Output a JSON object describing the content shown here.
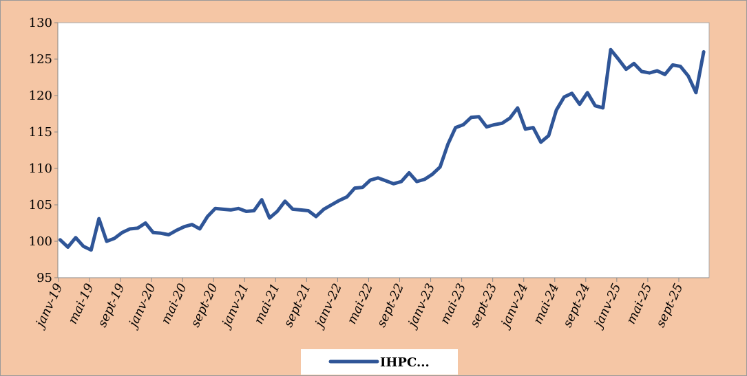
{
  "chart_data": {
    "type": "line",
    "categories": [
      "janv-19",
      null,
      null,
      null,
      "mai-19",
      null,
      null,
      null,
      "sept-19",
      null,
      null,
      null,
      "janv-20",
      null,
      null,
      null,
      "mai-20",
      null,
      null,
      null,
      "sept-20",
      null,
      null,
      null,
      "janv-21",
      null,
      null,
      null,
      "mai-21",
      null,
      null,
      null,
      "sept-21",
      null,
      null,
      null,
      "janv-22",
      null,
      null,
      null,
      "mai-22",
      null,
      null,
      null,
      "sept-22",
      null,
      null,
      null,
      "janv-23",
      null,
      null,
      null,
      "mai-23",
      null,
      null,
      null,
      "sept-23",
      null,
      null,
      null,
      "janv-24",
      null,
      null,
      null,
      "mai-24",
      null,
      null,
      null,
      "sept-24",
      null,
      null,
      null,
      "janv-25",
      null,
      null,
      null,
      "mai-25",
      null,
      null,
      null,
      "sept-25",
      null,
      null,
      null
    ],
    "series": [
      {
        "name": "IHPC...",
        "color": "#2f5597",
        "values": [
          100.2,
          99.2,
          100.5,
          99.3,
          98.8,
          103.1,
          100.0,
          100.4,
          101.2,
          101.7,
          101.8,
          102.5,
          101.2,
          101.1,
          100.9,
          101.5,
          102.0,
          102.3,
          101.7,
          103.4,
          104.5,
          104.4,
          104.3,
          104.5,
          104.1,
          104.2,
          105.7,
          103.2,
          104.1,
          105.5,
          104.4,
          104.3,
          104.2,
          103.4,
          104.4,
          105.0,
          105.6,
          106.1,
          107.3,
          107.4,
          108.4,
          108.7,
          108.3,
          107.9,
          108.2,
          109.4,
          108.2,
          108.5,
          109.2,
          110.2,
          113.3,
          115.6,
          116.0,
          117.0,
          117.1,
          115.7,
          116.0,
          116.2,
          116.9,
          118.3,
          115.4,
          115.6,
          113.6,
          114.5,
          118.0,
          119.8,
          120.3,
          118.8,
          120.4,
          118.6,
          118.3,
          126.3,
          125.0,
          123.6,
          124.4,
          123.3,
          123.1,
          123.4,
          122.9,
          124.2,
          124.0,
          122.7,
          120.4,
          126.0
        ]
      }
    ],
    "ylim": [
      95,
      130
    ],
    "yticks": [
      95,
      100,
      105,
      110,
      115,
      120,
      125,
      130
    ],
    "grid": false,
    "legend": "bottom"
  }
}
